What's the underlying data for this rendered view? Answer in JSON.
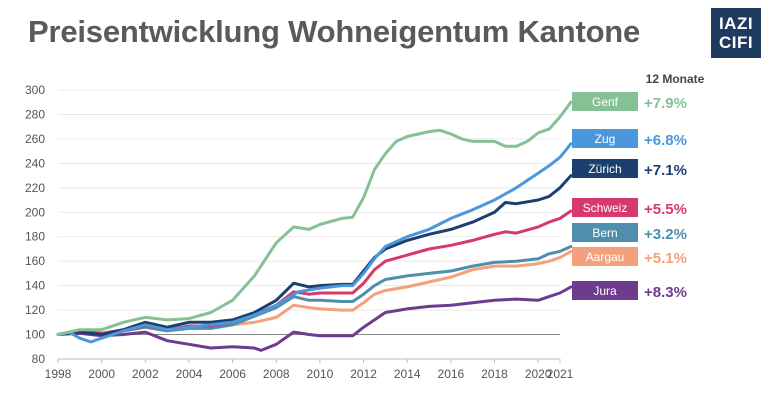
{
  "title": "Preisentwicklung Wohneigentum Kantone",
  "logo": {
    "line1": "IAZI",
    "line2": "CIFI",
    "color": "#1f3a5f"
  },
  "chart_data": {
    "type": "line",
    "title": "Preisentwicklung Wohneigentum Kantone",
    "legend_header": "12 Monate",
    "xlim": [
      1998,
      2021
    ],
    "ylim": [
      80,
      300
    ],
    "x_ticks": [
      1998,
      2000,
      2002,
      2004,
      2006,
      2008,
      2010,
      2012,
      2014,
      2016,
      2018,
      2020,
      2021
    ],
    "y_ticks": [
      80,
      100,
      120,
      140,
      160,
      180,
      200,
      220,
      240,
      260,
      280,
      300
    ],
    "baseline": 100,
    "grid": "horizontal",
    "legend_position": "right",
    "series": [
      {
        "name": "Genf",
        "change": "+7.9%",
        "color": "#86c195",
        "points": [
          [
            1998,
            100
          ],
          [
            1999,
            104
          ],
          [
            2000,
            104
          ],
          [
            2001,
            110
          ],
          [
            2002,
            114
          ],
          [
            2003,
            112
          ],
          [
            2004,
            113
          ],
          [
            2005,
            118
          ],
          [
            2006,
            128
          ],
          [
            2007,
            148
          ],
          [
            2008,
            175
          ],
          [
            2008.8,
            188
          ],
          [
            2009.5,
            186
          ],
          [
            2010,
            190
          ],
          [
            2011,
            195
          ],
          [
            2011.5,
            196
          ],
          [
            2012,
            212
          ],
          [
            2012.5,
            235
          ],
          [
            2013,
            248
          ],
          [
            2013.5,
            258
          ],
          [
            2014,
            262
          ],
          [
            2015,
            266
          ],
          [
            2015.5,
            267
          ],
          [
            2016,
            264
          ],
          [
            2016.5,
            260
          ],
          [
            2017,
            258
          ],
          [
            2018,
            258
          ],
          [
            2018.5,
            254
          ],
          [
            2019,
            254
          ],
          [
            2019.5,
            258
          ],
          [
            2020,
            265
          ],
          [
            2020.5,
            268
          ],
          [
            2021,
            278
          ],
          [
            2021.5,
            290
          ]
        ]
      },
      {
        "name": "Zug",
        "change": "+6.8%",
        "color": "#4b97dc",
        "points": [
          [
            1998,
            100
          ],
          [
            1998.5,
            102
          ],
          [
            1999,
            97
          ],
          [
            1999.5,
            94
          ],
          [
            2000,
            97
          ],
          [
            2001,
            103
          ],
          [
            2002,
            108
          ],
          [
            2003,
            104
          ],
          [
            2004,
            106
          ],
          [
            2005,
            108
          ],
          [
            2006,
            110
          ],
          [
            2007,
            116
          ],
          [
            2008,
            124
          ],
          [
            2009,
            135
          ],
          [
            2010,
            138
          ],
          [
            2011,
            140
          ],
          [
            2011.5,
            140
          ],
          [
            2012,
            150
          ],
          [
            2012.5,
            162
          ],
          [
            2013,
            172
          ],
          [
            2014,
            180
          ],
          [
            2015,
            186
          ],
          [
            2016,
            195
          ],
          [
            2017,
            202
          ],
          [
            2018,
            210
          ],
          [
            2019,
            220
          ],
          [
            2020,
            232
          ],
          [
            2020.5,
            238
          ],
          [
            2021,
            245
          ],
          [
            2021.5,
            256
          ]
        ]
      },
      {
        "name": "Zürich",
        "change": "+7.1%",
        "color": "#1c3f6e",
        "points": [
          [
            1998,
            100
          ],
          [
            1999,
            102
          ],
          [
            2000,
            100
          ],
          [
            2001,
            104
          ],
          [
            2002,
            110
          ],
          [
            2003,
            106
          ],
          [
            2004,
            110
          ],
          [
            2005,
            110
          ],
          [
            2006,
            112
          ],
          [
            2007,
            118
          ],
          [
            2008,
            128
          ],
          [
            2008.8,
            142
          ],
          [
            2009.5,
            139
          ],
          [
            2010,
            140
          ],
          [
            2011,
            141
          ],
          [
            2011.5,
            141
          ],
          [
            2012,
            152
          ],
          [
            2012.5,
            163
          ],
          [
            2013,
            170
          ],
          [
            2014,
            177
          ],
          [
            2015,
            182
          ],
          [
            2016,
            186
          ],
          [
            2017,
            192
          ],
          [
            2018,
            200
          ],
          [
            2018.5,
            208
          ],
          [
            2019,
            207
          ],
          [
            2020,
            210
          ],
          [
            2020.5,
            213
          ],
          [
            2021,
            220
          ],
          [
            2021.5,
            230
          ]
        ]
      },
      {
        "name": "Schweiz",
        "change": "+5.5%",
        "color": "#d63a6b",
        "points": [
          [
            1998,
            100
          ],
          [
            1999,
            103
          ],
          [
            2000,
            101
          ],
          [
            2001,
            104
          ],
          [
            2002,
            107
          ],
          [
            2003,
            104
          ],
          [
            2004,
            107
          ],
          [
            2005,
            107
          ],
          [
            2006,
            110
          ],
          [
            2007,
            116
          ],
          [
            2008,
            124
          ],
          [
            2008.8,
            135
          ],
          [
            2009.5,
            133
          ],
          [
            2010,
            134
          ],
          [
            2011,
            134
          ],
          [
            2011.5,
            134
          ],
          [
            2012,
            142
          ],
          [
            2012.5,
            153
          ],
          [
            2013,
            160
          ],
          [
            2014,
            165
          ],
          [
            2015,
            170
          ],
          [
            2016,
            173
          ],
          [
            2017,
            177
          ],
          [
            2018,
            182
          ],
          [
            2018.5,
            184
          ],
          [
            2019,
            183
          ],
          [
            2020,
            188
          ],
          [
            2020.5,
            192
          ],
          [
            2021,
            195
          ],
          [
            2021.5,
            201
          ]
        ]
      },
      {
        "name": "Bern",
        "change": "+3.2%",
        "color": "#4f8fad",
        "points": [
          [
            1998,
            100
          ],
          [
            1999,
            103
          ],
          [
            2000,
            100
          ],
          [
            2001,
            103
          ],
          [
            2002,
            106
          ],
          [
            2003,
            103
          ],
          [
            2004,
            105
          ],
          [
            2005,
            105
          ],
          [
            2006,
            108
          ],
          [
            2007,
            115
          ],
          [
            2008,
            122
          ],
          [
            2008.8,
            131
          ],
          [
            2009.5,
            128
          ],
          [
            2010,
            128
          ],
          [
            2011,
            127
          ],
          [
            2011.5,
            127
          ],
          [
            2012,
            133
          ],
          [
            2012.5,
            140
          ],
          [
            2013,
            145
          ],
          [
            2014,
            148
          ],
          [
            2015,
            150
          ],
          [
            2016,
            152
          ],
          [
            2017,
            156
          ],
          [
            2018,
            159
          ],
          [
            2019,
            160
          ],
          [
            2020,
            162
          ],
          [
            2020.5,
            166
          ],
          [
            2021,
            168
          ],
          [
            2021.5,
            172
          ]
        ]
      },
      {
        "name": "Aargau",
        "change": "+5.1%",
        "color": "#f4a07c",
        "points": [
          [
            1998,
            100
          ],
          [
            1999,
            102
          ],
          [
            2000,
            101
          ],
          [
            2001,
            103
          ],
          [
            2002,
            106
          ],
          [
            2003,
            104
          ],
          [
            2004,
            106
          ],
          [
            2005,
            106
          ],
          [
            2006,
            108
          ],
          [
            2007,
            110
          ],
          [
            2008,
            114
          ],
          [
            2008.8,
            124
          ],
          [
            2009.5,
            122
          ],
          [
            2010,
            121
          ],
          [
            2011,
            120
          ],
          [
            2011.5,
            120
          ],
          [
            2012,
            126
          ],
          [
            2012.5,
            133
          ],
          [
            2013,
            136
          ],
          [
            2014,
            139
          ],
          [
            2015,
            143
          ],
          [
            2016,
            147
          ],
          [
            2017,
            153
          ],
          [
            2018,
            156
          ],
          [
            2019,
            156
          ],
          [
            2020,
            158
          ],
          [
            2020.5,
            160
          ],
          [
            2021,
            163
          ],
          [
            2021.5,
            168
          ]
        ]
      },
      {
        "name": "Jura",
        "change": "+8.3%",
        "color": "#6e3c8e",
        "points": [
          [
            1998,
            100
          ],
          [
            1999,
            101
          ],
          [
            2000,
            99
          ],
          [
            2001,
            100
          ],
          [
            2002,
            102
          ],
          [
            2003,
            95
          ],
          [
            2004,
            92
          ],
          [
            2005,
            89
          ],
          [
            2006,
            90
          ],
          [
            2007,
            89
          ],
          [
            2007.3,
            87
          ],
          [
            2008,
            92
          ],
          [
            2008.8,
            102
          ],
          [
            2009.5,
            100
          ],
          [
            2010,
            99
          ],
          [
            2011,
            99
          ],
          [
            2011.5,
            99
          ],
          [
            2012,
            106
          ],
          [
            2012.5,
            112
          ],
          [
            2013,
            118
          ],
          [
            2014,
            121
          ],
          [
            2015,
            123
          ],
          [
            2016,
            124
          ],
          [
            2017,
            126
          ],
          [
            2018,
            128
          ],
          [
            2019,
            129
          ],
          [
            2020,
            128
          ],
          [
            2020.5,
            131
          ],
          [
            2021,
            134
          ],
          [
            2021.5,
            139
          ]
        ]
      }
    ]
  }
}
